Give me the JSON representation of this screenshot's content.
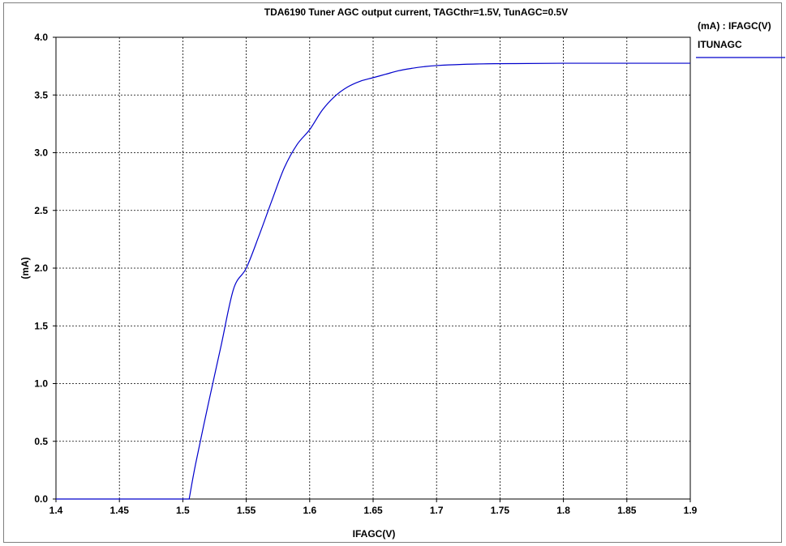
{
  "chart_data": {
    "type": "line",
    "title": "TDA6190 Tuner AGC output current, TAGCthr=1.5V, TunAGC=0.5V",
    "xlabel": "IFAGC(V)",
    "ylabel": "(mA)",
    "xlim": [
      1.4,
      1.9
    ],
    "ylim": [
      0.0,
      4.0
    ],
    "x_ticks": [
      "1.4",
      "1.45",
      "1.5",
      "1.55",
      "1.6",
      "1.65",
      "1.7",
      "1.75",
      "1.8",
      "1.85",
      "1.9"
    ],
    "y_ticks": [
      "0.0",
      "0.5",
      "1.0",
      "1.5",
      "2.0",
      "2.5",
      "3.0",
      "3.5",
      "4.0"
    ],
    "grid": true,
    "legend_header": "(mA) : IFAGC(V)",
    "legend_position": "right",
    "series": [
      {
        "name": "ITUNAGC",
        "color": "#0000cc",
        "x": [
          1.4,
          1.45,
          1.5,
          1.505,
          1.51,
          1.52,
          1.53,
          1.54,
          1.55,
          1.56,
          1.57,
          1.58,
          1.59,
          1.6,
          1.61,
          1.62,
          1.63,
          1.64,
          1.65,
          1.66,
          1.67,
          1.68,
          1.69,
          1.7,
          1.72,
          1.74,
          1.76,
          1.8,
          1.85,
          1.9
        ],
        "y": [
          0.0,
          0.0,
          0.0,
          0.0,
          0.3,
          0.82,
          1.32,
          1.82,
          2.0,
          2.28,
          2.58,
          2.87,
          3.07,
          3.2,
          3.37,
          3.49,
          3.57,
          3.62,
          3.65,
          3.68,
          3.71,
          3.73,
          3.745,
          3.755,
          3.765,
          3.77,
          3.772,
          3.775,
          3.775,
          3.775
        ]
      }
    ]
  }
}
